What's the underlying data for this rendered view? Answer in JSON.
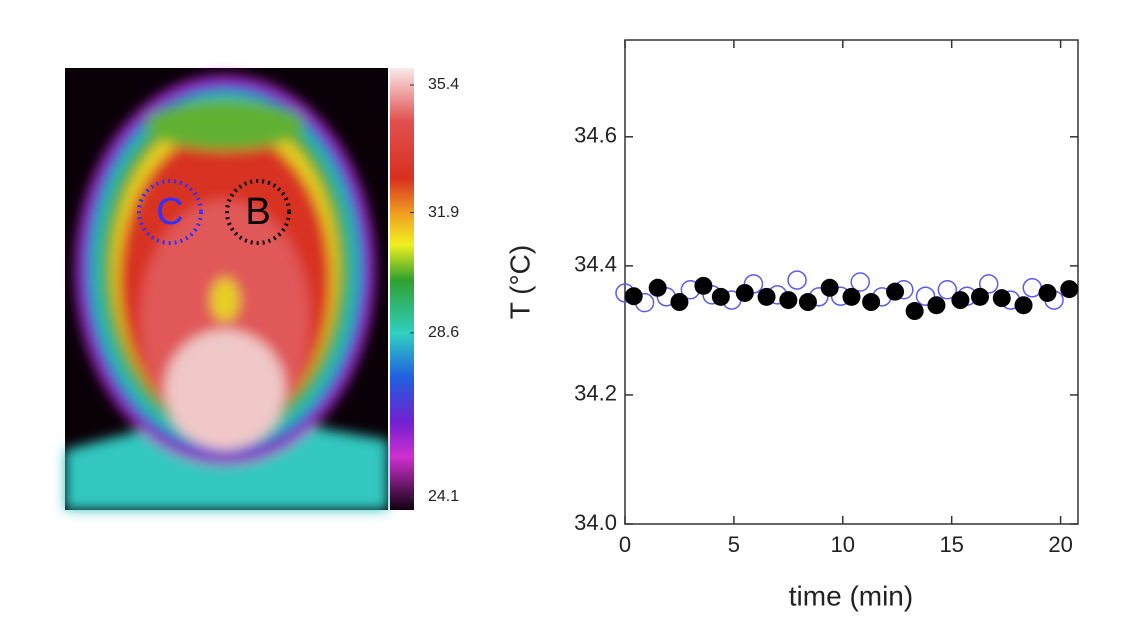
{
  "thermal_image": {
    "regions": [
      "C",
      "B"
    ],
    "colorbar": {
      "lim": [
        24.1,
        35.4
      ],
      "ticks": [
        35.4,
        31.9,
        28.6,
        24.1
      ]
    }
  },
  "chart_data": {
    "type": "scatter",
    "ylabel": "T (°C)",
    "xlabel": "time (min)",
    "xlim": [
      0,
      20.8
    ],
    "ylim": [
      34.0,
      34.75
    ],
    "xticks": [
      0,
      5,
      10,
      15,
      20
    ],
    "yticks": [
      {
        "value": 34.0,
        "label": "34.0"
      },
      34.2,
      34.4,
      34.6
    ],
    "series": [
      {
        "color": "#5b5bf0",
        "marker": "open",
        "x": [
          0.0,
          0.9,
          1.9,
          3.0,
          4.0,
          4.9,
          5.9,
          7.0,
          7.9,
          8.9,
          9.9,
          10.8,
          11.8,
          12.8,
          13.8,
          14.8,
          15.7,
          16.7,
          17.7,
          18.7,
          19.7
        ],
        "values": [
          34.358,
          34.343,
          34.352,
          34.363,
          34.355,
          34.347,
          34.372,
          34.355,
          34.378,
          34.352,
          34.353,
          34.375,
          34.352,
          34.363,
          34.353,
          34.363,
          34.353,
          34.372,
          34.347,
          34.366,
          34.347
        ]
      },
      {
        "color": "#000000",
        "marker": "filled",
        "x": [
          0.4,
          1.5,
          2.5,
          3.6,
          4.4,
          5.5,
          6.5,
          7.5,
          8.4,
          9.4,
          10.4,
          11.3,
          12.4,
          13.3,
          14.3,
          15.4,
          16.3,
          17.3,
          18.3,
          19.4,
          20.4
        ],
        "values": [
          34.353,
          34.366,
          34.344,
          34.369,
          34.352,
          34.358,
          34.352,
          34.347,
          34.344,
          34.366,
          34.352,
          34.344,
          34.36,
          34.33,
          34.339,
          34.347,
          34.352,
          34.35,
          34.339,
          34.358,
          34.364
        ]
      }
    ]
  }
}
